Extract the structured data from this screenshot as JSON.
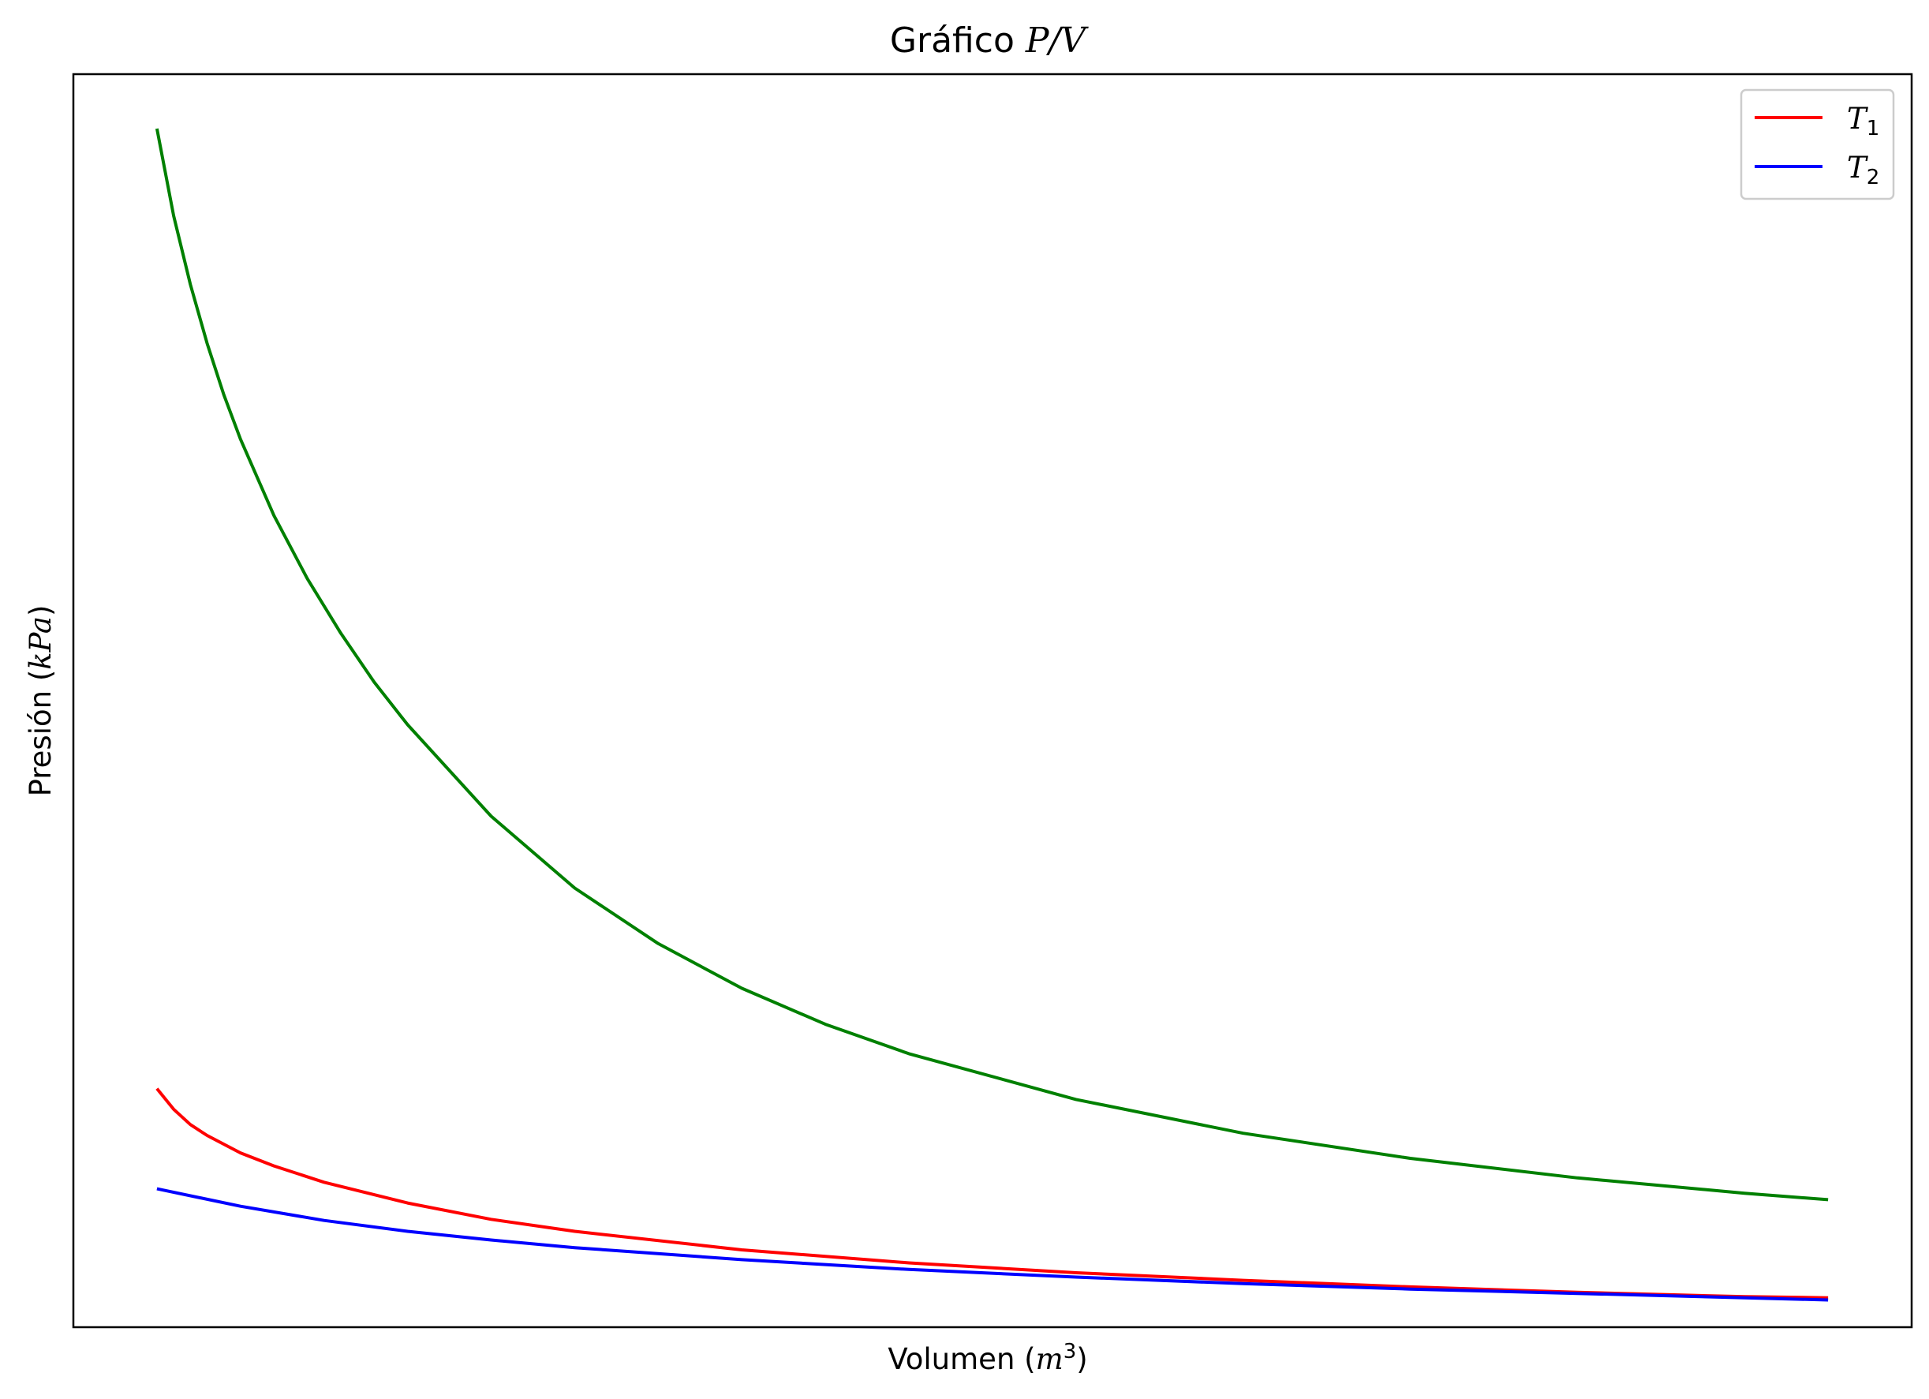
{
  "chart_data": {
    "type": "line",
    "title": {
      "prefix": "Gráfico ",
      "math": "P/V"
    },
    "xlabel": {
      "prefix": "Volumen (",
      "math": "m",
      "sup": "3",
      "suffix": ")"
    },
    "ylabel": {
      "prefix": "Presión (",
      "math": "kPa",
      "suffix": ")"
    },
    "xticks": [],
    "yticks": [],
    "xlim": [
      0,
      1.1
    ],
    "ylim": [
      0,
      1.15
    ],
    "legend": {
      "placement": "top-right",
      "entries": [
        {
          "symbol": "T",
          "subscript": "1",
          "color": "#ff0000"
        },
        {
          "symbol": "T",
          "subscript": "2",
          "color": "#0000ff"
        }
      ]
    },
    "series": [
      {
        "color": "#008000",
        "x": [
          0.05,
          0.06,
          0.07,
          0.08,
          0.09,
          0.1,
          0.12,
          0.14,
          0.16,
          0.18,
          0.2,
          0.25,
          0.3,
          0.35,
          0.4,
          0.45,
          0.5,
          0.6,
          0.7,
          0.8,
          0.9,
          1.0,
          1.05
        ],
        "y": [
          1.1,
          1.02,
          0.957,
          0.903,
          0.856,
          0.815,
          0.745,
          0.687,
          0.637,
          0.592,
          0.553,
          0.469,
          0.403,
          0.352,
          0.311,
          0.278,
          0.251,
          0.209,
          0.178,
          0.155,
          0.137,
          0.123,
          0.117
        ]
      },
      {
        "name": "T1",
        "color": "#ff0000",
        "x": [
          0.05,
          0.06,
          0.07,
          0.08,
          0.1,
          0.12,
          0.15,
          0.2,
          0.25,
          0.3,
          0.4,
          0.5,
          0.6,
          0.7,
          0.8,
          0.9,
          1.0,
          1.05
        ],
        "y": [
          0.219,
          0.2,
          0.186,
          0.176,
          0.16,
          0.148,
          0.133,
          0.114,
          0.099,
          0.088,
          0.071,
          0.059,
          0.05,
          0.043,
          0.037,
          0.032,
          0.028,
          0.027
        ]
      },
      {
        "name": "T2",
        "color": "#0000ff",
        "x": [
          0.05,
          0.1,
          0.15,
          0.2,
          0.25,
          0.3,
          0.4,
          0.5,
          0.6,
          0.7,
          0.8,
          0.9,
          1.0,
          1.05
        ],
        "y": [
          0.127,
          0.111,
          0.098,
          0.088,
          0.08,
          0.073,
          0.062,
          0.053,
          0.046,
          0.04,
          0.035,
          0.031,
          0.027,
          0.025
        ]
      }
    ]
  }
}
